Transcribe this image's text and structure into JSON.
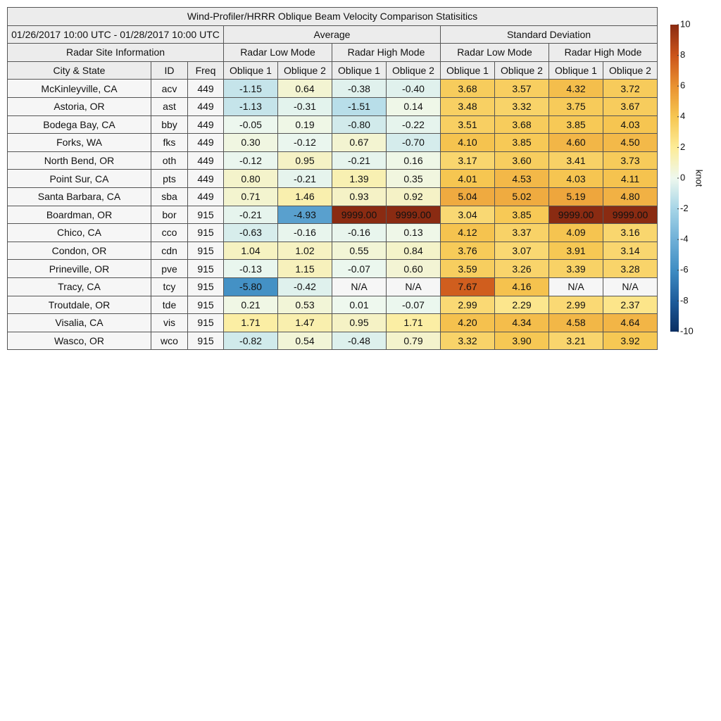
{
  "title": "Wind-Profiler/HRRR Oblique Beam Velocity Comparison Statisitics",
  "date_range": "01/26/2017 10:00 UTC - 01/28/2017 10:00 UTC",
  "header": {
    "site_info": "Radar Site Information",
    "average": "Average",
    "std": "Standard Deviation",
    "modes": [
      "Radar Low Mode",
      "Radar High Mode",
      "Radar Low Mode",
      "Radar High Mode"
    ],
    "columns": [
      "City & State",
      "ID",
      "Freq",
      "Oblique 1",
      "Oblique 2",
      "Oblique 1",
      "Oblique 2",
      "Oblique 1",
      "Oblique 2",
      "Oblique 1",
      "Oblique 2"
    ]
  },
  "rows": [
    [
      "McKinleyville, CA",
      "acv",
      "449",
      "-1.15",
      "0.64",
      "-0.38",
      "-0.40",
      "3.68",
      "3.57",
      "4.32",
      "3.72"
    ],
    [
      "Astoria, OR",
      "ast",
      "449",
      "-1.13",
      "-0.31",
      "-1.51",
      "0.14",
      "3.48",
      "3.32",
      "3.75",
      "3.67"
    ],
    [
      "Bodega Bay, CA",
      "bby",
      "449",
      "-0.05",
      "0.19",
      "-0.80",
      "-0.22",
      "3.51",
      "3.68",
      "3.85",
      "4.03"
    ],
    [
      "Forks, WA",
      "fks",
      "449",
      "0.30",
      "-0.12",
      "0.67",
      "-0.70",
      "4.10",
      "3.85",
      "4.60",
      "4.50"
    ],
    [
      "North Bend, OR",
      "oth",
      "449",
      "-0.12",
      "0.95",
      "-0.21",
      "0.16",
      "3.17",
      "3.60",
      "3.41",
      "3.73"
    ],
    [
      "Point Sur, CA",
      "pts",
      "449",
      "0.80",
      "-0.21",
      "1.39",
      "0.35",
      "4.01",
      "4.53",
      "4.03",
      "4.11"
    ],
    [
      "Santa Barbara, CA",
      "sba",
      "449",
      "0.71",
      "1.46",
      "0.93",
      "0.92",
      "5.04",
      "5.02",
      "5.19",
      "4.80"
    ],
    [
      "Boardman, OR",
      "bor",
      "915",
      "-0.21",
      "-4.93",
      "9999.00",
      "9999.00",
      "3.04",
      "3.85",
      "9999.00",
      "9999.00"
    ],
    [
      "Chico, CA",
      "cco",
      "915",
      "-0.63",
      "-0.16",
      "-0.16",
      "0.13",
      "4.12",
      "3.37",
      "4.09",
      "3.16"
    ],
    [
      "Condon, OR",
      "cdn",
      "915",
      "1.04",
      "1.02",
      "0.55",
      "0.84",
      "3.76",
      "3.07",
      "3.91",
      "3.14"
    ],
    [
      "Prineville, OR",
      "pve",
      "915",
      "-0.13",
      "1.15",
      "-0.07",
      "0.60",
      "3.59",
      "3.26",
      "3.39",
      "3.28"
    ],
    [
      "Tracy, CA",
      "tcy",
      "915",
      "-5.80",
      "-0.42",
      "N/A",
      "N/A",
      "7.67",
      "4.16",
      "N/A",
      "N/A"
    ],
    [
      "Troutdale, OR",
      "tde",
      "915",
      "0.21",
      "0.53",
      "0.01",
      "-0.07",
      "2.99",
      "2.29",
      "2.99",
      "2.37"
    ],
    [
      "Visalia, CA",
      "vis",
      "915",
      "1.71",
      "1.47",
      "0.95",
      "1.71",
      "4.20",
      "4.34",
      "4.58",
      "4.64"
    ],
    [
      "Wasco, OR",
      "wco",
      "915",
      "-0.82",
      "0.54",
      "-0.48",
      "0.79",
      "3.32",
      "3.90",
      "3.21",
      "3.92"
    ]
  ],
  "colorbar": {
    "label": "knot",
    "lim": [
      -10,
      10
    ],
    "ticks": [
      -10,
      -8,
      -6,
      -4,
      -2,
      0,
      2,
      4,
      6,
      8,
      10
    ],
    "colors": [
      "#0b2f63",
      "#1d5c9b",
      "#3f8dc3",
      "#6fb0d7",
      "#a6d5e7",
      "#eef8ee",
      "#fdec97",
      "#f6c651",
      "#e99130",
      "#cb541b",
      "#8a2b12"
    ]
  }
}
